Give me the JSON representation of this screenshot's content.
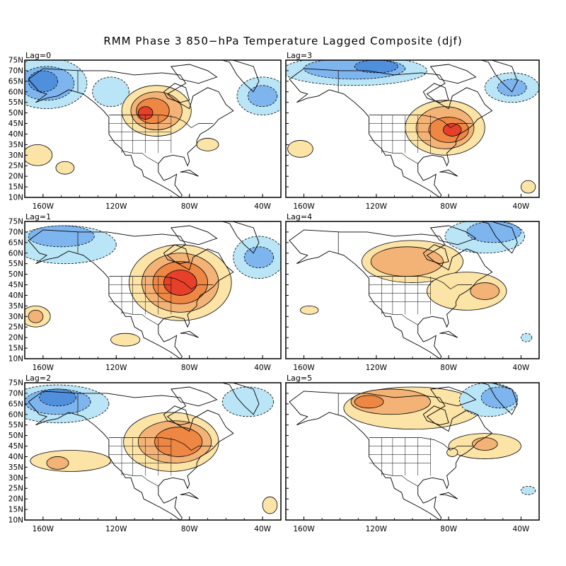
{
  "title": "RMM Phase 3 850−hPa Temperature Lagged Composite (djf)",
  "y_ticks": [
    "75N",
    "70N",
    "65N",
    "60N",
    "55N",
    "50N",
    "45N",
    "40N",
    "35N",
    "30N",
    "25N",
    "20N",
    "15N",
    "10N"
  ],
  "x_ticks": [
    "160W",
    "120W",
    "80W",
    "40W"
  ],
  "colors": {
    "cold_strong": "#4f8fdc",
    "cold_mid": "#7fb5ef",
    "cold_light": "#b9e5f7",
    "warm_light": "#fce3a6",
    "warm_mid": "#f4b376",
    "warm_strong": "#ee8644",
    "warm_max": "#e6402a",
    "land_outline": "#000000"
  },
  "panels": [
    {
      "label": "Lag=0"
    },
    {
      "label": "Lag=3"
    },
    {
      "label": "Lag=1"
    },
    {
      "label": "Lag=4"
    },
    {
      "label": "Lag=2"
    },
    {
      "label": "Lag=5"
    }
  ]
}
